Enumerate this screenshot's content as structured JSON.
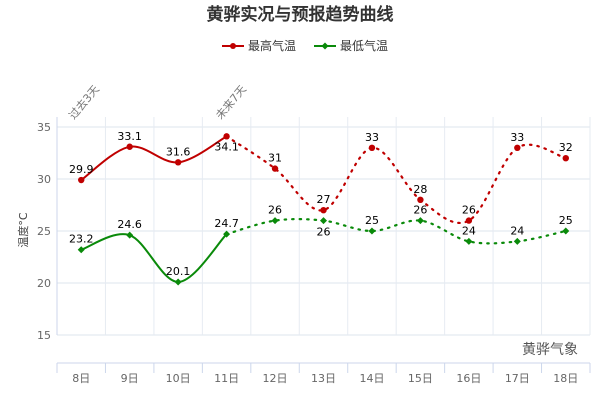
{
  "chart_data": {
    "type": "line",
    "title": "黄骅实况与预报趋势曲线",
    "ylabel": "温度°C",
    "xlabel": "",
    "ylim": [
      15,
      35
    ],
    "yticks": [
      "15",
      "20",
      "25",
      "30",
      "35"
    ],
    "categories": [
      "8日",
      "9日",
      "10日",
      "11日",
      "12日",
      "13日",
      "14日",
      "15日",
      "16日",
      "17日",
      "18日"
    ],
    "series": [
      {
        "name": "最高气温",
        "color": "#c00000",
        "values": [
          29.9,
          33.1,
          31.6,
          34.1,
          31,
          27,
          33,
          28,
          26,
          33,
          32
        ]
      },
      {
        "name": "最低气温",
        "color": "#0a8a0a",
        "values": [
          23.2,
          24.6,
          20.1,
          24.7,
          26,
          26,
          25,
          26,
          24,
          24,
          25
        ]
      }
    ],
    "observed_count": 4,
    "annotations": [
      "过去3天",
      "未来7天"
    ],
    "legend_position": "top-center",
    "grid": true
  },
  "watermark": "黄骅气象"
}
